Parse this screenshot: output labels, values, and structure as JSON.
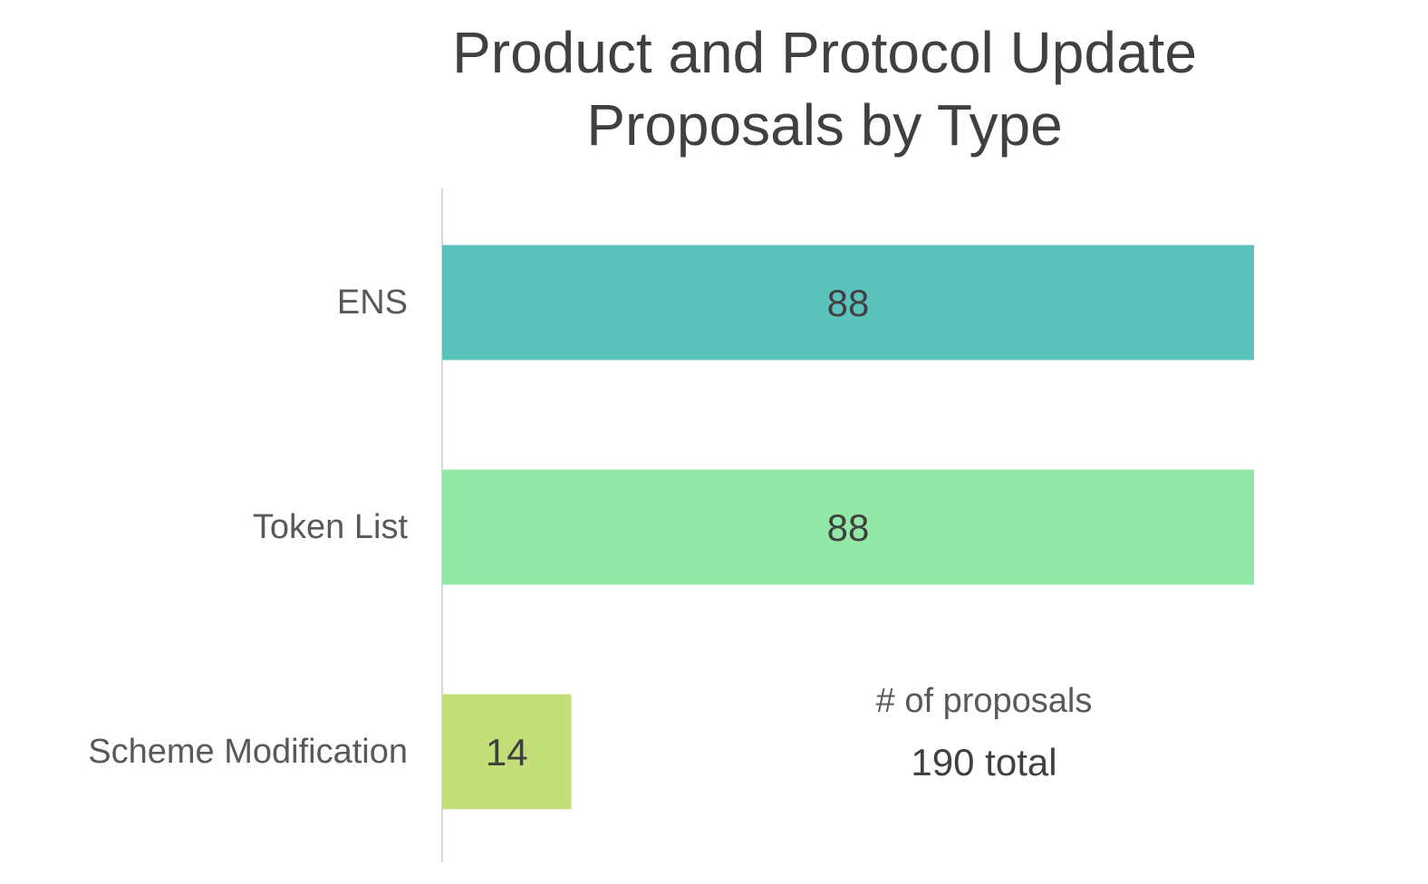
{
  "chart_data": {
    "type": "bar",
    "orientation": "horizontal",
    "title_lines": [
      "Product and Protocol Update",
      "Proposals by Type"
    ],
    "categories": [
      "ENS",
      "Token List",
      "Scheme Modification"
    ],
    "values": [
      88,
      88,
      14
    ],
    "data_labels": [
      "88",
      "88",
      "14"
    ],
    "colors": [
      "#5BC2BC",
      "#92E8A6",
      "#C2E077"
    ],
    "xlim": [
      0,
      88
    ],
    "grid": false,
    "legend": "none",
    "annotation": {
      "unit": "# of proposals",
      "total": "190 total"
    }
  }
}
